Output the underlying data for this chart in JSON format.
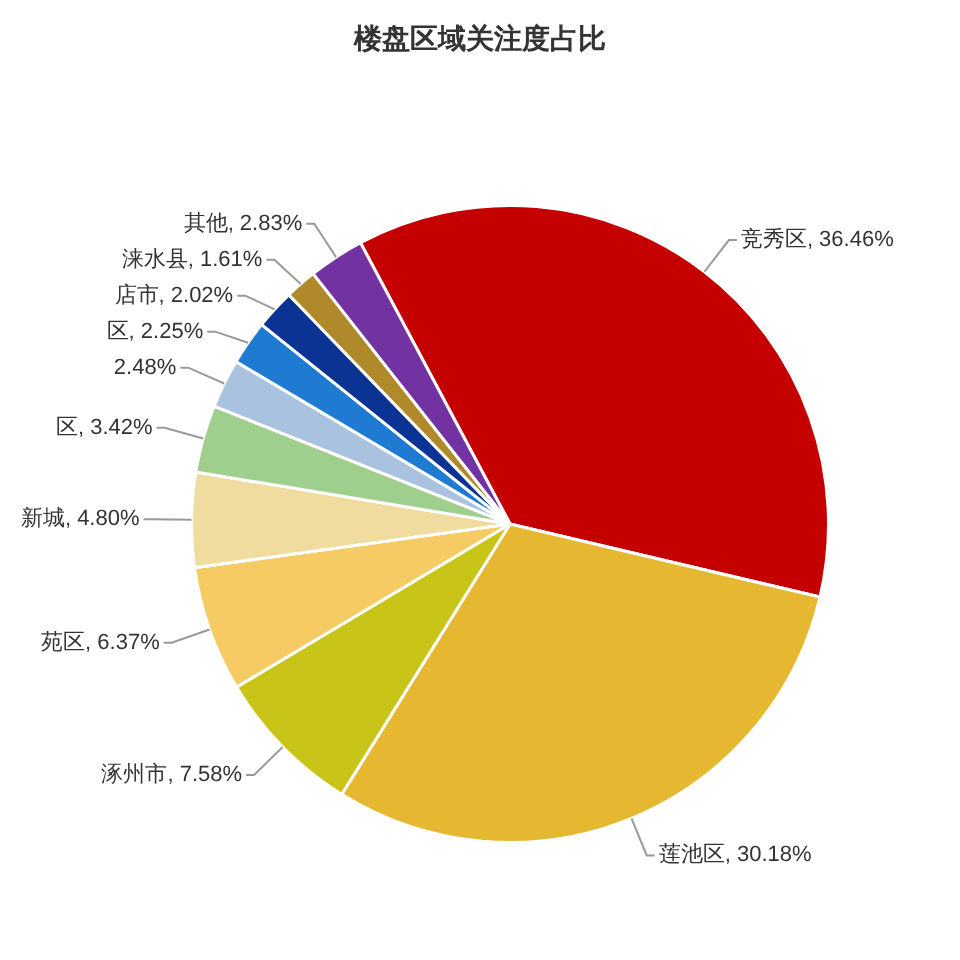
{
  "chart_data": {
    "type": "pie",
    "title": "楼盘区域关注度占比",
    "categories": [
      "竞秀区",
      "莲池区",
      "涿州市",
      "苑区",
      "新城",
      "区",
      null,
      "区",
      "店市",
      "涞水县",
      "其他"
    ],
    "values": [
      36.46,
      30.18,
      7.58,
      6.37,
      4.8,
      3.42,
      2.48,
      2.25,
      2.02,
      1.61,
      2.83
    ],
    "value_labels": [
      "36.46%",
      "30.18%",
      "7.58%",
      "6.37%",
      "4.80%",
      "3.42%",
      "2.48%",
      "2.25%",
      "2.02%",
      "1.61%",
      "2.83%"
    ],
    "colors": [
      "#c40000",
      "#e6b832",
      "#c9c418",
      "#f6cb63",
      "#f0dc9e",
      "#9fcf8c",
      "#a9c2e0",
      "#1f7ad2",
      "#0b3394",
      "#b0892a",
      "#7232a2"
    ],
    "legend": false
  }
}
